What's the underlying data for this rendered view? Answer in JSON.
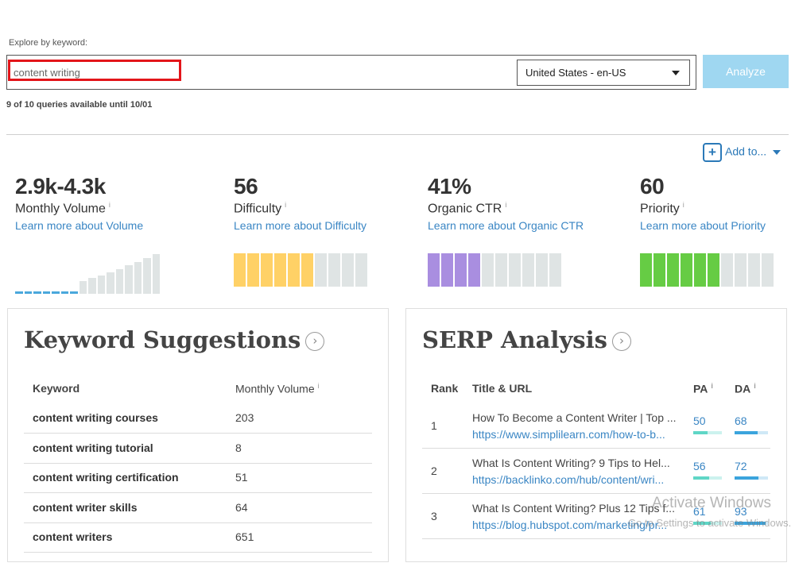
{
  "search": {
    "label": "Explore by keyword:",
    "value": "content writing",
    "locale": "United States - en-US",
    "analyze_label": "Analyze",
    "queries_note": "9 of 10 queries available until 10/01"
  },
  "actions": {
    "add_to_label": "Add to...",
    "plus_icon": "plus-icon",
    "caret_icon": "chevron-down-icon"
  },
  "metrics": [
    {
      "value": "2.9k-4.3k",
      "label": "Monthly Volume",
      "info": "i",
      "link": "Learn more about Volume"
    },
    {
      "value": "56",
      "label": "Difficulty",
      "info": "i",
      "link": "Learn more about Difficulty",
      "color": "#ffd166",
      "filled_segments": 6,
      "total_segments": 10
    },
    {
      "value": "41%",
      "label": "Organic CTR",
      "info": "i",
      "link": "Learn more about Organic CTR",
      "color": "#a98ee0",
      "filled_segments": 4,
      "total_segments": 10
    },
    {
      "value": "60",
      "label": "Priority",
      "info": "i",
      "link": "Learn more about Priority",
      "color": "#66cc44",
      "filled_segments": 6,
      "total_segments": 10
    }
  ],
  "keyword_suggestions": {
    "title": "Keyword Suggestions",
    "col_keyword": "Keyword",
    "col_volume": "Monthly Volume",
    "info": "i",
    "rows": [
      {
        "keyword": "content writing courses",
        "volume": "203"
      },
      {
        "keyword": "content writing tutorial",
        "volume": "8"
      },
      {
        "keyword": "content writing certification",
        "volume": "51"
      },
      {
        "keyword": "content writer skills",
        "volume": "64"
      },
      {
        "keyword": "content writers",
        "volume": "651"
      }
    ]
  },
  "serp_analysis": {
    "title": "SERP Analysis",
    "col_rank": "Rank",
    "col_title": "Title & URL",
    "col_pa": "PA",
    "col_da": "DA",
    "info": "i",
    "rows": [
      {
        "rank": "1",
        "title": "How To Become a Content Writer | Top ...",
        "url": "https://www.simplilearn.com/how-to-b...",
        "pa": "50",
        "da": "68"
      },
      {
        "rank": "2",
        "title": "What Is Content Writing? 9 Tips to Hel...",
        "url": "https://backlinko.com/hub/content/wri...",
        "pa": "56",
        "da": "72"
      },
      {
        "rank": "3",
        "title": "What Is Content Writing? Plus 12 Tips f...",
        "url": "https://blog.hubspot.com/marketing/pr...",
        "pa": "61",
        "da": "93"
      }
    ]
  },
  "watermark": {
    "title": "Activate Windows",
    "subtitle": "Go to Settings to activate Windows."
  },
  "colors": {
    "accent": "#3a86c4",
    "analyze": "#9fd7f1",
    "highlight": "#e3151a",
    "pa_bar": "#5fd6c6",
    "da_bar": "#3ba4dd"
  }
}
